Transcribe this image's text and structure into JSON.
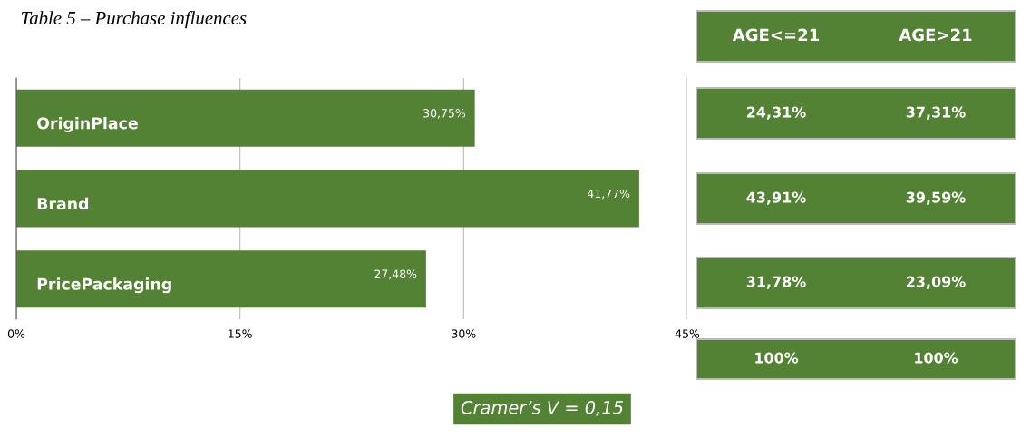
{
  "chart_data": [
    {
      "type": "bar",
      "orientation": "horizontal",
      "title": "Table 5 – Purchase influences",
      "categories": [
        "OriginPlace",
        "Brand",
        "PricePackaging"
      ],
      "values": [
        30.75,
        41.77,
        27.48
      ],
      "color": "#548235",
      "value_labels": [
        "30,75%",
        "41,77%",
        "27,48%"
      ],
      "xlim": [
        0,
        45
      ],
      "xticks": [
        {
          "value": 0,
          "label": "0%"
        },
        {
          "value": 15,
          "label": "15%"
        },
        {
          "value": 30,
          "label": "30%"
        },
        {
          "value": 45,
          "label": "45%"
        }
      ],
      "grid": "x",
      "annotations": [
        "Cramer’s V = 0,15"
      ]
    },
    {
      "type": "other",
      "color": "#548235",
      "annotations": [
        "AGE<=21",
        "AGE>21",
        "24,31%",
        "37,31%",
        "43,91%",
        "39,59%",
        "31,78%",
        "23,09%",
        "100%",
        "100%"
      ]
    }
  ]
}
